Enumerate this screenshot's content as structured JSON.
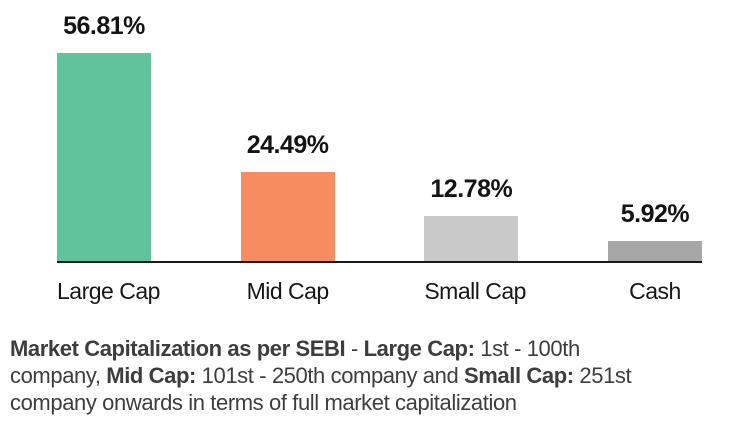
{
  "chart_data": {
    "type": "bar",
    "categories": [
      "Large Cap",
      "Mid Cap",
      "Small Cap",
      "Cash"
    ],
    "values": [
      56.81,
      24.49,
      12.78,
      5.92
    ],
    "value_labels": [
      "56.81%",
      "24.49%",
      "12.78%",
      "5.92%"
    ],
    "bar_colors": [
      "#5FC39B",
      "#F68C5F",
      "#C9C9C9",
      "#A6A6A6"
    ],
    "title": "",
    "xlabel": "",
    "ylabel": "",
    "ylim": [
      0,
      60
    ],
    "grid": false,
    "legend": "none",
    "value_label_position": "above-bar"
  },
  "colors": {
    "axis": "#1a1a1a",
    "value_label_text": "#141414",
    "category_label_text": "#161616",
    "footnote_text": "#3d3d3d",
    "background": "#ffffff"
  },
  "footnote": {
    "lines": [
      [
        {
          "text": "Market Capitalization as per SEBI",
          "bold": true
        },
        {
          "text": " - ",
          "bold": false
        },
        {
          "text": "Large Cap:",
          "bold": true
        },
        {
          "text": " 1st - 100th",
          "bold": false
        }
      ],
      [
        {
          "text": "company, ",
          "bold": false
        },
        {
          "text": "Mid Cap:",
          "bold": true
        },
        {
          "text": " 101st - 250th company and ",
          "bold": false
        },
        {
          "text": "Small Cap:",
          "bold": true
        },
        {
          "text": " 251st",
          "bold": false
        }
      ],
      [
        {
          "text": "company onwards in terms of full market capitalization",
          "bold": false
        }
      ]
    ]
  }
}
